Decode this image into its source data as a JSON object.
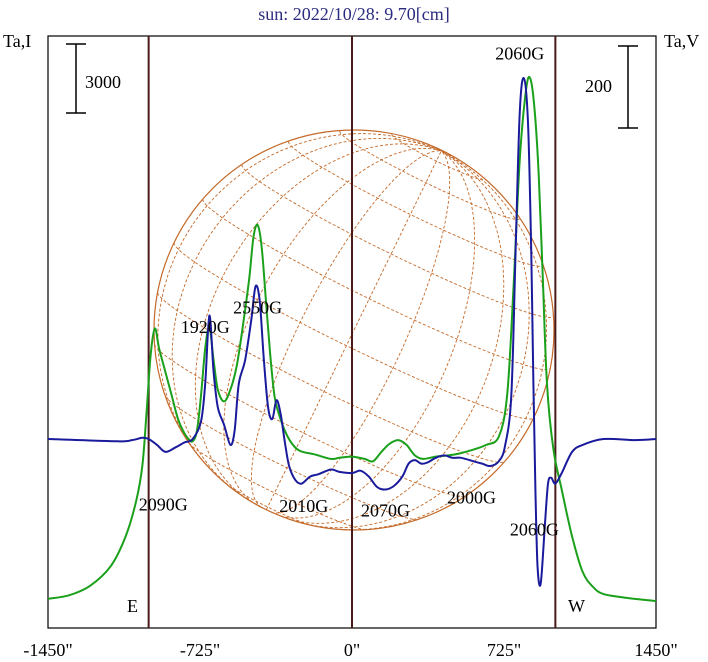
{
  "title": "sun: 2022/10/28: 9.70[cm]",
  "left_axis_label": "Ta,I",
  "right_axis_label": "Ta,V",
  "scale_left": "3000",
  "scale_right": "200",
  "limb_markers": {
    "east": "E",
    "west": "W"
  },
  "colors": {
    "frame": "#000000",
    "vertical_lines": "#4a1a1a",
    "grid": "#c46a2a",
    "series_I": "#1a1a9c",
    "series_V": "#1aa01a",
    "title": "#2b2b80"
  },
  "chart_data": {
    "type": "line",
    "title": "sun: 2022/10/28: 9.70[cm]",
    "x_unit": "arcsec",
    "xlim": [
      -1450,
      1450
    ],
    "x_ticks": [
      -1450,
      -725,
      0,
      725,
      1450
    ],
    "x_tick_labels": [
      "-1450\"",
      "-725\"",
      "0\"",
      "725\"",
      "1450\""
    ],
    "vertical_lines_x": [
      -970,
      0,
      970
    ],
    "ylabel_left": "Ta,I",
    "ylabel_right": "Ta,V",
    "grid": false,
    "series": [
      {
        "name": "Ta,I",
        "color": "#1a1a9c",
        "points": [
          [
            -1450,
            230
          ],
          [
            -1120,
            210
          ],
          [
            -1050,
            220
          ],
          [
            -1000,
            240
          ],
          [
            -970,
            230
          ],
          [
            -930,
            180
          ],
          [
            -890,
            120
          ],
          [
            -840,
            160
          ],
          [
            -800,
            200
          ],
          [
            -760,
            230
          ],
          [
            -720,
            380
          ],
          [
            -700,
            700
          ],
          [
            -680,
            1280
          ],
          [
            -660,
            800
          ],
          [
            -640,
            500
          ],
          [
            -610,
            350
          ],
          [
            -580,
            180
          ],
          [
            -560,
            300
          ],
          [
            -540,
            700
          ],
          [
            -510,
            900
          ],
          [
            -480,
            1250
          ],
          [
            -460,
            1530
          ],
          [
            -440,
            1400
          ],
          [
            -420,
            900
          ],
          [
            -400,
            500
          ],
          [
            -380,
            400
          ],
          [
            -360,
            560
          ],
          [
            -340,
            440
          ],
          [
            -320,
            200
          ],
          [
            -300,
            0
          ],
          [
            -270,
            -120
          ],
          [
            -240,
            -150
          ],
          [
            -200,
            -90
          ],
          [
            -160,
            -70
          ],
          [
            -100,
            -30
          ],
          [
            -60,
            -50
          ],
          [
            0,
            -60
          ],
          [
            40,
            -40
          ],
          [
            80,
            -90
          ],
          [
            120,
            -180
          ],
          [
            160,
            -200
          ],
          [
            200,
            -170
          ],
          [
            240,
            -90
          ],
          [
            270,
            20
          ],
          [
            300,
            50
          ],
          [
            330,
            20
          ],
          [
            360,
            30
          ],
          [
            400,
            70
          ],
          [
            440,
            90
          ],
          [
            480,
            70
          ],
          [
            520,
            70
          ],
          [
            580,
            40
          ],
          [
            620,
            20
          ],
          [
            660,
            0
          ],
          [
            700,
            40
          ],
          [
            730,
            170
          ],
          [
            760,
            600
          ],
          [
            780,
            1800
          ],
          [
            800,
            3000
          ],
          [
            820,
            3300
          ],
          [
            840,
            2900
          ],
          [
            855,
            1800
          ],
          [
            865,
            700
          ],
          [
            875,
            -200
          ],
          [
            885,
            -850
          ],
          [
            900,
            -1000
          ],
          [
            920,
            -500
          ],
          [
            935,
            -150
          ],
          [
            950,
            -100
          ],
          [
            970,
            -150
          ],
          [
            1000,
            -60
          ],
          [
            1050,
            120
          ],
          [
            1100,
            180
          ],
          [
            1200,
            230
          ],
          [
            1350,
            220
          ],
          [
            1450,
            230
          ]
        ]
      },
      {
        "name": "Ta,V",
        "color": "#1aa01a",
        "points": [
          [
            -1450,
            -1130
          ],
          [
            -1350,
            -1100
          ],
          [
            -1250,
            -1020
          ],
          [
            -1150,
            -850
          ],
          [
            -1080,
            -600
          ],
          [
            -1030,
            -300
          ],
          [
            -1000,
            0
          ],
          [
            -980,
            450
          ],
          [
            -960,
            950
          ],
          [
            -940,
            1170
          ],
          [
            -920,
            1000
          ],
          [
            -890,
            800
          ],
          [
            -860,
            600
          ],
          [
            -830,
            400
          ],
          [
            -800,
            280
          ],
          [
            -780,
            230
          ],
          [
            -760,
            210
          ],
          [
            -740,
            300
          ],
          [
            -720,
            600
          ],
          [
            -700,
            1000
          ],
          [
            -680,
            1180
          ],
          [
            -660,
            900
          ],
          [
            -640,
            650
          ],
          [
            -610,
            550
          ],
          [
            -580,
            650
          ],
          [
            -550,
            850
          ],
          [
            -520,
            1200
          ],
          [
            -490,
            1600
          ],
          [
            -470,
            1950
          ],
          [
            -450,
            2050
          ],
          [
            -430,
            1850
          ],
          [
            -410,
            1400
          ],
          [
            -390,
            950
          ],
          [
            -370,
            600
          ],
          [
            -350,
            450
          ],
          [
            -320,
            300
          ],
          [
            -290,
            200
          ],
          [
            -250,
            130
          ],
          [
            -180,
            100
          ],
          [
            -100,
            60
          ],
          [
            -60,
            70
          ],
          [
            0,
            80
          ],
          [
            60,
            60
          ],
          [
            100,
            40
          ],
          [
            140,
            120
          ],
          [
            180,
            190
          ],
          [
            220,
            220
          ],
          [
            260,
            180
          ],
          [
            300,
            90
          ],
          [
            340,
            60
          ],
          [
            400,
            80
          ],
          [
            460,
            90
          ],
          [
            520,
            110
          ],
          [
            580,
            140
          ],
          [
            640,
            180
          ],
          [
            700,
            250
          ],
          [
            740,
            600
          ],
          [
            770,
            1500
          ],
          [
            800,
            2600
          ],
          [
            830,
            3200
          ],
          [
            850,
            3300
          ],
          [
            870,
            3050
          ],
          [
            890,
            2500
          ],
          [
            910,
            1600
          ],
          [
            930,
            700
          ],
          [
            960,
            150
          ],
          [
            1000,
            -200
          ],
          [
            1050,
            -600
          ],
          [
            1100,
            -900
          ],
          [
            1150,
            -1030
          ],
          [
            1200,
            -1090
          ],
          [
            1300,
            -1120
          ],
          [
            1400,
            -1140
          ],
          [
            1450,
            -1150
          ]
        ]
      }
    ],
    "annotations": [
      {
        "text": "2550G",
        "x": -450,
        "y": 1300
      },
      {
        "text": "1920G",
        "x": -700,
        "y": 1130
      },
      {
        "text": "2060G",
        "x": 800,
        "y": 3460
      },
      {
        "text": "2090G",
        "x": -900,
        "y": -380
      },
      {
        "text": "2010G",
        "x": -230,
        "y": -390
      },
      {
        "text": "2070G",
        "x": 160,
        "y": -430
      },
      {
        "text": "2000G",
        "x": 570,
        "y": -320
      },
      {
        "text": "2060G",
        "x": 870,
        "y": -590
      }
    ]
  }
}
